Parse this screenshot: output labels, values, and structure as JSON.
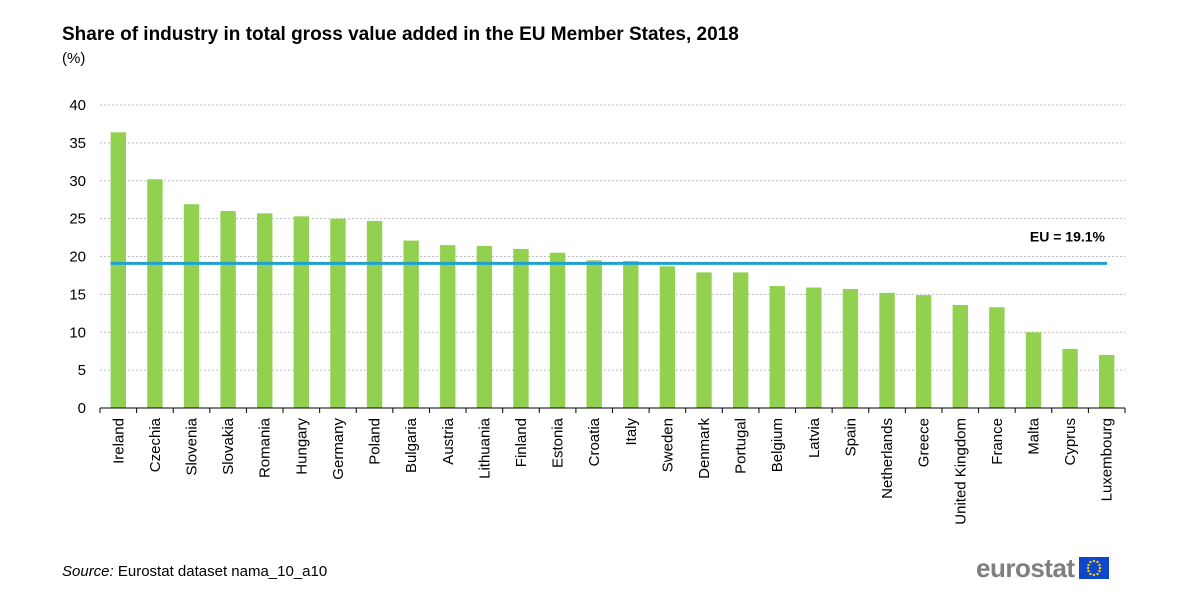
{
  "header": {
    "title": "Share of industry in total gross value added in the EU Member States, 2018",
    "unit": "(%)"
  },
  "source": {
    "label": "Source:",
    "text": "Eurostat dataset nama_10_a10"
  },
  "logo": {
    "text": "eurostat",
    "icon": "eu-flag-icon"
  },
  "colors": {
    "bar": "#92d050",
    "reference_line": "#1fa2cf",
    "grid": "#bfbfbf"
  },
  "chart_data": {
    "type": "bar",
    "categories": [
      "Ireland",
      "Czechia",
      "Slovenia",
      "Slovakia",
      "Romania",
      "Hungary",
      "Germany",
      "Poland",
      "Bulgaria",
      "Austria",
      "Lithuania",
      "Finland",
      "Estonia",
      "Croatia",
      "Italy",
      "Sweden",
      "Denmark",
      "Portugal",
      "Belgium",
      "Latvia",
      "Spain",
      "Netherlands",
      "Greece",
      "United Kingdom",
      "France",
      "Malta",
      "Cyprus",
      "Luxembourg"
    ],
    "values": [
      36.4,
      30.2,
      26.9,
      26.0,
      25.7,
      25.3,
      25.0,
      24.7,
      22.1,
      21.5,
      21.4,
      21.0,
      20.5,
      19.5,
      19.4,
      18.7,
      17.9,
      17.9,
      16.1,
      15.9,
      15.7,
      15.2,
      14.9,
      13.6,
      13.3,
      10.0,
      7.8,
      7.0
    ],
    "title": "Share of industry in total gross value added in the EU Member States, 2018",
    "ylabel": "(%)",
    "ylim": [
      0,
      40
    ],
    "yticks": [
      0,
      5,
      10,
      15,
      20,
      25,
      30,
      35,
      40
    ],
    "grid": true,
    "reference_line": {
      "value": 19.1,
      "label": "EU = 19.1%"
    }
  }
}
